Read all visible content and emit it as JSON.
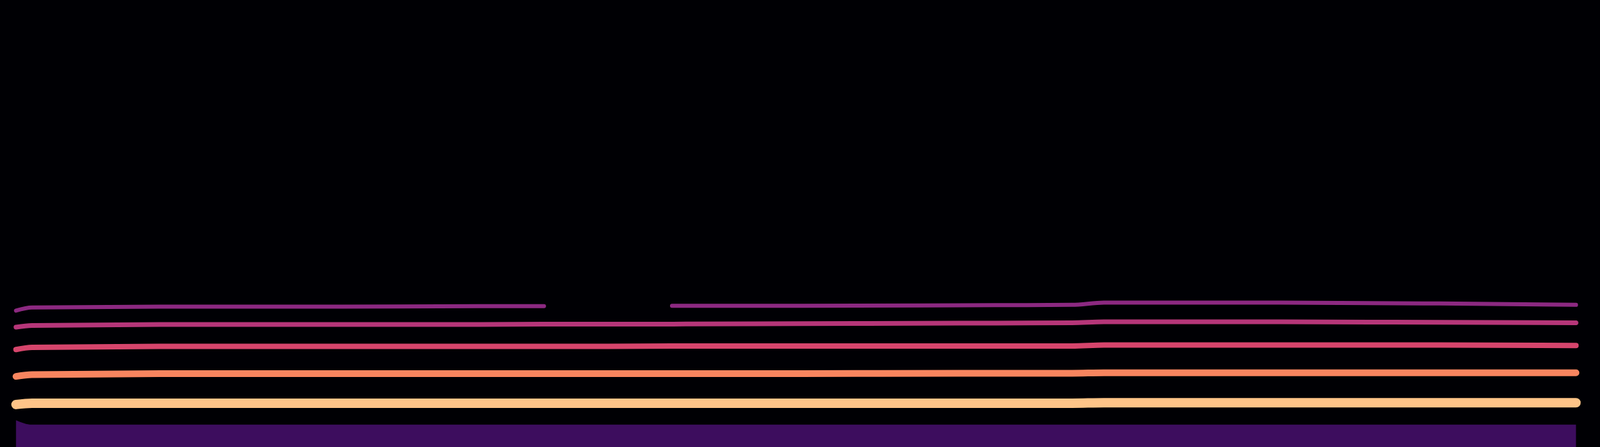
{
  "chart_data": {
    "type": "spectrogram",
    "tick_labels": false,
    "grid": false,
    "xlim": [
      0,
      100
    ],
    "ylim": [
      0,
      100
    ],
    "x": [
      1,
      2,
      10,
      20,
      30,
      34,
      38,
      42,
      50,
      60,
      67,
      69,
      80,
      90,
      98.5
    ],
    "series": [
      {
        "type": "area",
        "color": "#51127c",
        "values": [
          6,
          5,
          5,
          5,
          5,
          5,
          5,
          5,
          5,
          5,
          5,
          5,
          5,
          5,
          5
        ]
      },
      {
        "type": "line",
        "color": "#8c2981",
        "values": [
          30.5,
          31.2,
          31.4,
          31.4,
          31.5,
          31.5,
          null,
          31.6,
          31.6,
          31.7,
          31.8,
          32.3,
          32.3,
          32.1,
          31.8
        ]
      },
      {
        "type": "line",
        "color": "#b63679",
        "values": [
          26.8,
          27.2,
          27.4,
          27.4,
          27.4,
          27.5,
          27.5,
          27.5,
          27.6,
          27.7,
          27.8,
          28.0,
          28.0,
          27.9,
          27.8
        ]
      },
      {
        "type": "line",
        "color": "#d6456c",
        "values": [
          21.8,
          22.3,
          22.5,
          22.5,
          22.5,
          22.5,
          22.5,
          22.6,
          22.6,
          22.6,
          22.6,
          22.8,
          22.8,
          22.8,
          22.7
        ]
      },
      {
        "type": "line",
        "color": "#f8855f",
        "values": [
          15.8,
          16.2,
          16.4,
          16.4,
          16.4,
          16.4,
          16.4,
          16.4,
          16.4,
          16.5,
          16.5,
          16.6,
          16.6,
          16.6,
          16.6
        ]
      },
      {
        "type": "line",
        "color": "#fec488",
        "values": [
          9.5,
          9.8,
          9.8,
          9.8,
          9.8,
          9.8,
          9.8,
          9.8,
          9.8,
          9.8,
          9.8,
          9.9,
          9.9,
          9.9,
          9.9
        ]
      }
    ]
  }
}
